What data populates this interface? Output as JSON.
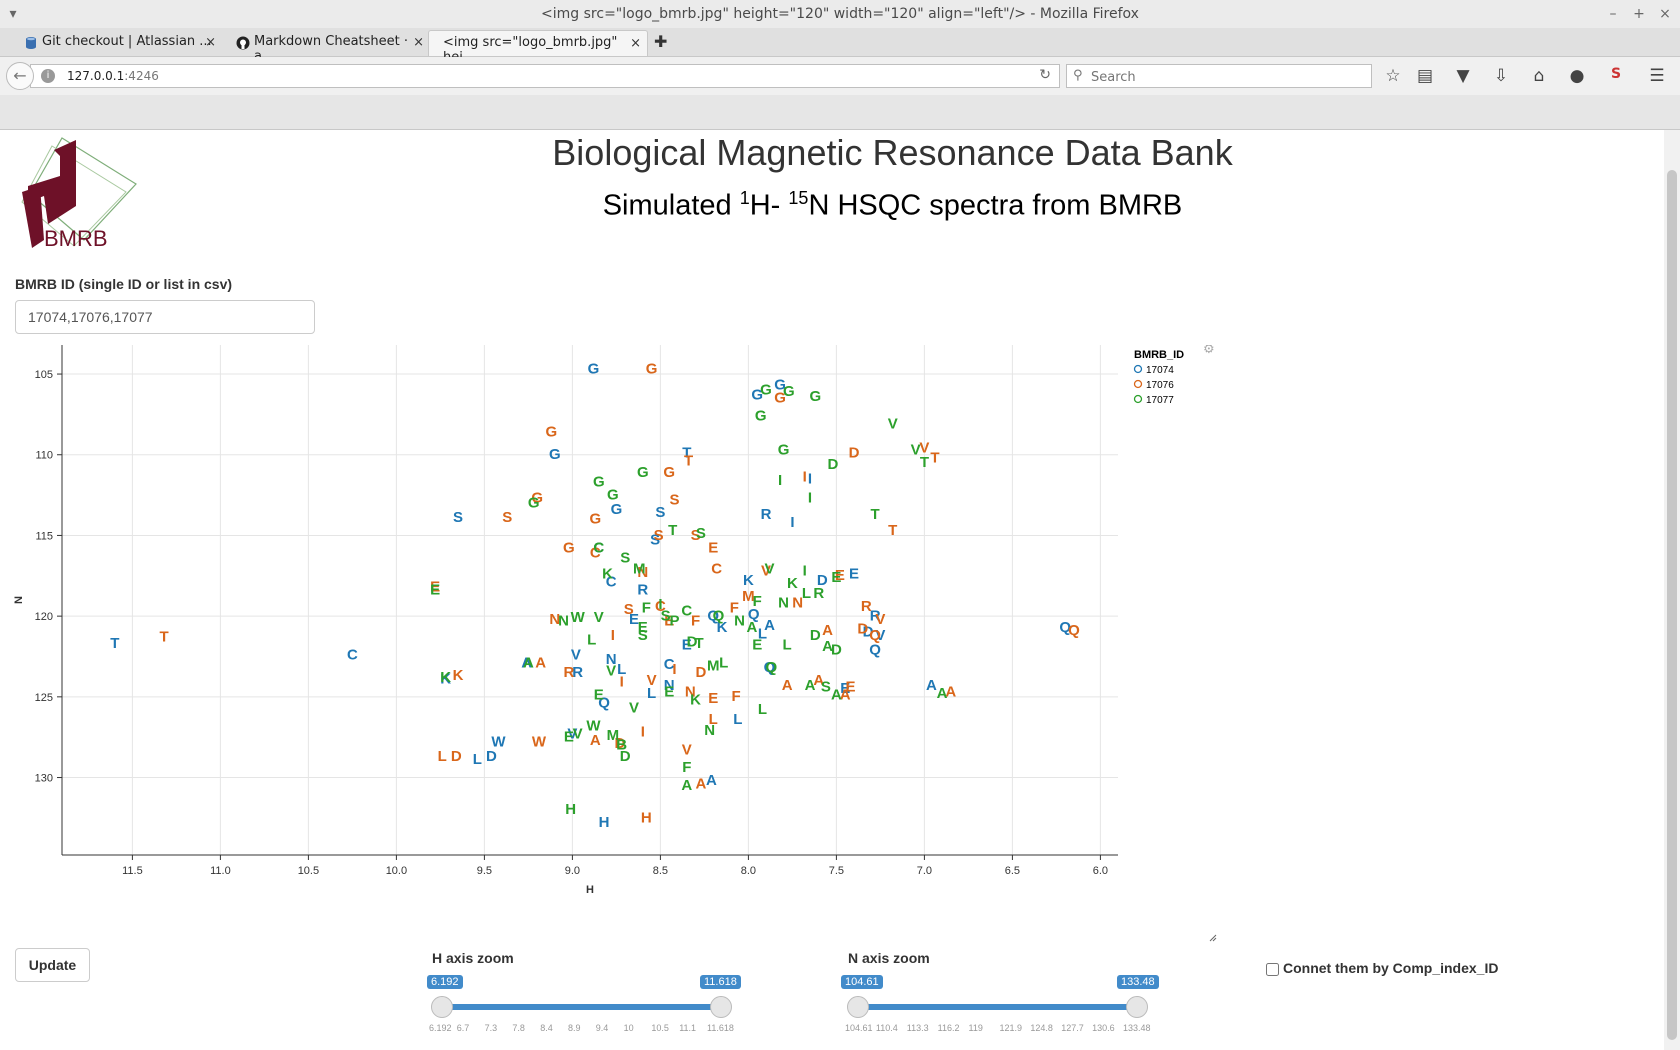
{
  "window": {
    "title": "<img src=\"logo_bmrb.jpg\" height=\"120\" width=\"120\" align=\"left\"/> - Mozilla Firefox"
  },
  "tabs": [
    {
      "label": "Git checkout | Atlassian ...",
      "icon": "database-icon"
    },
    {
      "label": "Markdown Cheatsheet · a...",
      "icon": "github-icon"
    },
    {
      "label": "<img src=\"logo_bmrb.jpg\" hei...",
      "icon": "none"
    }
  ],
  "nav": {
    "url_host": "127.0.0.1",
    "url_port": ":4246",
    "search_placeholder": "Search"
  },
  "page": {
    "title": "Biological Magnetic Resonance Data Bank",
    "subtitle_parts": [
      "Simulated ",
      "1",
      "H- ",
      "15",
      "N HSQC spectra from BMRB"
    ],
    "logo_text": "BMRB",
    "id_label": "BMRB ID (single ID or list in csv)",
    "id_value": "17074,17076,17077",
    "update_label": "Update",
    "h_zoom_label": "H axis zoom",
    "n_zoom_label": "N axis zoom",
    "connect_label": "Connet them by Comp_index_ID"
  },
  "sliders": {
    "h": {
      "min": "6.192",
      "max": "11.618",
      "grid": [
        "6.192",
        "6.7",
        "7.3",
        "7.8",
        "8.4",
        "8.9",
        "9.4",
        "10",
        "10.5",
        "11.1",
        "11.618"
      ]
    },
    "n": {
      "min": "104.61",
      "max": "133.48",
      "grid": [
        "104.61",
        "110.4",
        "113.3",
        "116.2",
        "119",
        "121.9",
        "124.8",
        "127.7",
        "130.6",
        "133.48"
      ]
    }
  },
  "colors": {
    "17074": "#1f77b4",
    "17076": "#d9661a",
    "17077": "#2ca02c"
  },
  "chart_data": {
    "type": "scatter",
    "xlabel": "H",
    "ylabel": "N",
    "xlim": [
      11.9,
      5.9
    ],
    "ylim": [
      103.2,
      134.8
    ],
    "x_ticks": [
      "11.5",
      "11.0",
      "10.5",
      "10.0",
      "9.5",
      "9.0",
      "8.5",
      "8.0",
      "7.5",
      "7.0",
      "6.5",
      "6.0"
    ],
    "y_ticks": [
      "105",
      "110",
      "115",
      "120",
      "125",
      "130"
    ],
    "legend_title": "BMRB_ID",
    "legend_position": "right",
    "grid": true,
    "series": [
      {
        "name": "17074",
        "points": [
          [
            "G",
            8.88,
            104.6
          ],
          [
            "G",
            7.95,
            106.2
          ],
          [
            "G",
            7.82,
            105.6
          ],
          [
            "G",
            9.1,
            109.9
          ],
          [
            "T",
            8.35,
            109.8
          ],
          [
            "I",
            7.65,
            111.4
          ],
          [
            "S",
            9.65,
            113.8
          ],
          [
            "G",
            8.75,
            113.3
          ],
          [
            "S",
            8.5,
            113.5
          ],
          [
            "R",
            7.9,
            113.6
          ],
          [
            "I",
            7.75,
            114.1
          ],
          [
            "C",
            8.85,
            115.7
          ],
          [
            "S",
            8.53,
            115.2
          ],
          [
            "C",
            8.78,
            117.8
          ],
          [
            "R",
            8.6,
            118.3
          ],
          [
            "K",
            8.0,
            117.7
          ],
          [
            "D",
            7.58,
            117.7
          ],
          [
            "E",
            7.4,
            117.3
          ],
          [
            "R",
            7.28,
            119.9
          ],
          [
            "D",
            7.32,
            120.9
          ],
          [
            "V",
            7.25,
            121.1
          ],
          [
            "Q",
            7.28,
            122.0
          ],
          [
            "Q",
            6.2,
            120.6
          ],
          [
            "T",
            11.6,
            121.6
          ],
          [
            "C",
            10.25,
            122.3
          ],
          [
            "K",
            9.72,
            123.8
          ],
          [
            "A",
            9.26,
            122.8
          ],
          [
            "V",
            8.98,
            122.3
          ],
          [
            "R",
            8.97,
            123.4
          ],
          [
            "N",
            8.78,
            122.6
          ],
          [
            "L",
            8.72,
            123.2
          ],
          [
            "E",
            8.65,
            120.1
          ],
          [
            "C",
            8.45,
            122.9
          ],
          [
            "K",
            8.15,
            120.6
          ],
          [
            "L",
            7.92,
            121.0
          ],
          [
            "Q",
            7.97,
            119.8
          ],
          [
            "A",
            7.88,
            120.5
          ],
          [
            "E",
            8.35,
            121.7
          ],
          [
            "Q",
            8.2,
            119.9
          ],
          [
            "Q",
            7.88,
            123.1
          ],
          [
            "N",
            8.45,
            124.2
          ],
          [
            "Q",
            8.82,
            125.3
          ],
          [
            "L",
            8.06,
            126.3
          ],
          [
            "W",
            9.42,
            127.7
          ],
          [
            "V",
            9.0,
            127.2
          ],
          [
            "L",
            9.54,
            128.8
          ],
          [
            "D",
            9.46,
            128.6
          ],
          [
            "H",
            8.82,
            132.7
          ],
          [
            "A",
            8.21,
            130.1
          ],
          [
            "E",
            7.45,
            124.4
          ],
          [
            "A",
            6.96,
            124.2
          ],
          [
            "L",
            8.55,
            124.7
          ]
        ]
      },
      {
        "name": "17076",
        "points": [
          [
            "G",
            8.55,
            104.6
          ],
          [
            "G",
            7.82,
            106.4
          ],
          [
            "G",
            9.12,
            108.5
          ],
          [
            "T",
            8.34,
            110.3
          ],
          [
            "D",
            7.4,
            109.8
          ],
          [
            "V",
            7.0,
            109.5
          ],
          [
            "T",
            6.94,
            110.1
          ],
          [
            "I",
            7.68,
            111.3
          ],
          [
            "G",
            8.45,
            111.0
          ],
          [
            "S",
            8.42,
            112.7
          ],
          [
            "G",
            9.2,
            112.6
          ],
          [
            "S",
            9.37,
            113.8
          ],
          [
            "G",
            8.87,
            113.9
          ],
          [
            "S",
            8.51,
            114.9
          ],
          [
            "S",
            8.3,
            114.9
          ],
          [
            "T",
            7.18,
            114.6
          ],
          [
            "E",
            8.2,
            115.7
          ],
          [
            "G",
            9.02,
            115.7
          ],
          [
            "C",
            8.87,
            116.0
          ],
          [
            "N",
            8.6,
            117.2
          ],
          [
            "C",
            8.18,
            117.0
          ],
          [
            "E",
            7.48,
            117.4
          ],
          [
            "V",
            7.9,
            117.1
          ],
          [
            "E",
            9.78,
            118.1
          ],
          [
            "C",
            8.5,
            119.3
          ],
          [
            "S",
            8.68,
            119.5
          ],
          [
            "M",
            8.0,
            118.7
          ],
          [
            "F",
            8.08,
            119.4
          ],
          [
            "N",
            7.72,
            119.1
          ],
          [
            "R",
            7.33,
            119.3
          ],
          [
            "D",
            7.35,
            120.7
          ],
          [
            "V",
            7.25,
            120.1
          ],
          [
            "A",
            7.55,
            120.8
          ],
          [
            "N",
            9.1,
            120.1
          ],
          [
            "I",
            8.77,
            121.1
          ],
          [
            "E",
            8.45,
            120.2
          ],
          [
            "F",
            8.3,
            120.2
          ],
          [
            "Q",
            7.28,
            121.1
          ],
          [
            "Q",
            6.15,
            120.8
          ],
          [
            "T",
            11.32,
            121.2
          ],
          [
            "K",
            9.65,
            123.6
          ],
          [
            "A",
            9.18,
            122.8
          ],
          [
            "R",
            9.02,
            123.4
          ],
          [
            "I",
            8.72,
            124.0
          ],
          [
            "V",
            8.55,
            123.9
          ],
          [
            "I",
            8.42,
            123.2
          ],
          [
            "D",
            8.27,
            123.4
          ],
          [
            "E",
            8.2,
            125.0
          ],
          [
            "A",
            7.6,
            123.9
          ],
          [
            "A",
            7.78,
            124.2
          ],
          [
            "F",
            8.07,
            124.9
          ],
          [
            "N",
            8.33,
            124.6
          ],
          [
            "L",
            8.2,
            126.3
          ],
          [
            "W",
            9.19,
            127.7
          ],
          [
            "A",
            8.87,
            127.6
          ],
          [
            "D",
            8.73,
            127.8
          ],
          [
            "I",
            8.6,
            127.1
          ],
          [
            "L",
            9.74,
            128.6
          ],
          [
            "D",
            9.66,
            128.6
          ],
          [
            "V",
            8.35,
            128.2
          ],
          [
            "A",
            8.27,
            130.3
          ],
          [
            "H",
            8.58,
            132.4
          ],
          [
            "A",
            6.85,
            124.6
          ],
          [
            "A",
            7.45,
            124.8
          ],
          [
            "E",
            7.42,
            124.3
          ]
        ]
      },
      {
        "name": "17077",
        "points": [
          [
            "G",
            7.9,
            105.9
          ],
          [
            "G",
            7.77,
            106.0
          ],
          [
            "G",
            7.62,
            106.3
          ],
          [
            "G",
            7.93,
            107.5
          ],
          [
            "G",
            7.8,
            109.6
          ],
          [
            "V",
            7.18,
            108.0
          ],
          [
            "V",
            7.05,
            109.6
          ],
          [
            "T",
            7.0,
            110.4
          ],
          [
            "D",
            7.52,
            110.5
          ],
          [
            "I",
            7.82,
            111.5
          ],
          [
            "G",
            8.85,
            111.6
          ],
          [
            "G",
            8.6,
            111.0
          ],
          [
            "G",
            8.77,
            112.4
          ],
          [
            "G",
            9.22,
            112.9
          ],
          [
            "I",
            7.65,
            112.6
          ],
          [
            "T",
            7.28,
            113.6
          ],
          [
            "T",
            8.43,
            114.6
          ],
          [
            "S",
            8.27,
            114.8
          ],
          [
            "C",
            8.85,
            115.7
          ],
          [
            "S",
            8.7,
            116.3
          ],
          [
            "M",
            8.62,
            117.0
          ],
          [
            "K",
            8.8,
            117.3
          ],
          [
            "V",
            7.88,
            117.0
          ],
          [
            "I",
            7.68,
            117.1
          ],
          [
            "K",
            7.75,
            117.9
          ],
          [
            "E",
            7.5,
            117.5
          ],
          [
            "L",
            7.67,
            118.5
          ],
          [
            "R",
            7.6,
            118.5
          ],
          [
            "N",
            7.8,
            119.1
          ],
          [
            "F",
            7.95,
            119.0
          ],
          [
            "Q",
            8.17,
            119.9
          ],
          [
            "I",
            8.5,
            119.2
          ],
          [
            "S",
            8.47,
            119.9
          ],
          [
            "C",
            8.35,
            119.6
          ],
          [
            "N",
            8.05,
            120.2
          ],
          [
            "E",
            8.6,
            120.6
          ],
          [
            "L",
            8.89,
            121.4
          ],
          [
            "N",
            9.05,
            120.2
          ],
          [
            "W",
            8.97,
            120.0
          ],
          [
            "V",
            8.85,
            120.0
          ],
          [
            "S",
            8.6,
            121.1
          ],
          [
            "P",
            8.42,
            120.2
          ],
          [
            "D",
            8.32,
            121.5
          ],
          [
            "A",
            7.98,
            120.6
          ],
          [
            "E",
            7.95,
            121.7
          ],
          [
            "T",
            8.28,
            121.6
          ],
          [
            "L",
            7.78,
            121.7
          ],
          [
            "A",
            7.55,
            121.8
          ],
          [
            "D",
            7.5,
            122.0
          ],
          [
            "A",
            9.25,
            122.8
          ],
          [
            "V",
            8.78,
            123.3
          ],
          [
            "Q",
            7.87,
            123.1
          ],
          [
            "L",
            8.14,
            122.8
          ],
          [
            "M",
            8.2,
            123.0
          ],
          [
            "A",
            7.65,
            124.2
          ],
          [
            "S",
            7.56,
            124.3
          ],
          [
            "E",
            8.45,
            124.6
          ],
          [
            "A",
            7.5,
            124.8
          ],
          [
            "K",
            8.3,
            125.1
          ],
          [
            "V",
            8.65,
            125.6
          ],
          [
            "L",
            7.92,
            125.7
          ],
          [
            "E",
            8.85,
            124.8
          ],
          [
            "W",
            8.88,
            126.7
          ],
          [
            "E",
            9.02,
            127.4
          ],
          [
            "V",
            8.97,
            127.2
          ],
          [
            "M",
            8.77,
            127.3
          ],
          [
            "B",
            8.72,
            127.9
          ],
          [
            "D",
            8.7,
            128.6
          ],
          [
            "F",
            8.35,
            129.3
          ],
          [
            "A",
            8.35,
            130.4
          ],
          [
            "H",
            9.01,
            131.9
          ],
          [
            "N",
            8.22,
            127.0
          ],
          [
            "D",
            7.62,
            121.1
          ],
          [
            "K",
            9.72,
            123.7
          ],
          [
            "E",
            9.78,
            118.3
          ],
          [
            "F",
            8.58,
            119.4
          ],
          [
            "A",
            6.9,
            124.7
          ]
        ]
      }
    ]
  }
}
